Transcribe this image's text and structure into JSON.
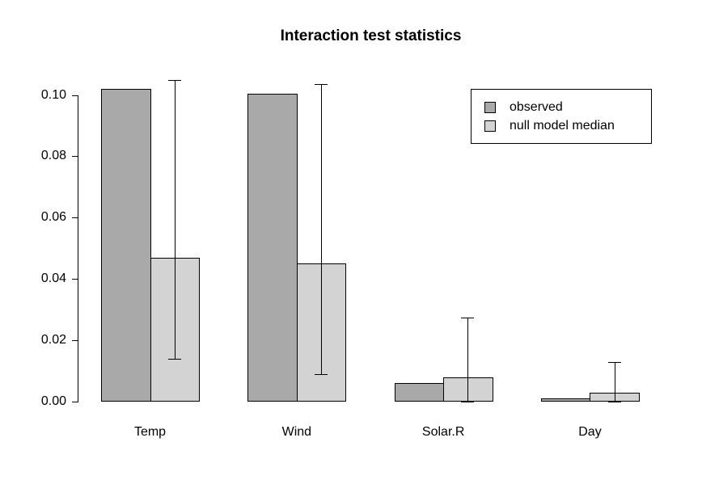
{
  "title": "Interaction test statistics",
  "colors": {
    "observed": "#a9a9a9",
    "null_median": "#d3d3d3",
    "border": "#000000",
    "axis": "#000000",
    "background": "#ffffff"
  },
  "legend": {
    "items": [
      {
        "label": "observed",
        "color_key": "observed"
      },
      {
        "label": "null model median",
        "color_key": "null_median"
      }
    ]
  },
  "chart_data": {
    "type": "bar",
    "title": "Interaction test statistics",
    "categories": [
      "Temp",
      "Wind",
      "Solar.R",
      "Day"
    ],
    "series": [
      {
        "name": "observed",
        "values": [
          0.102,
          0.1005,
          0.006,
          0.001
        ]
      },
      {
        "name": "null model median",
        "values": [
          0.047,
          0.045,
          0.008,
          0.003
        ]
      }
    ],
    "error_bars": {
      "on_series": "null model median",
      "low": [
        0.014,
        0.009,
        0.0,
        0.0
      ],
      "high": [
        0.105,
        0.1035,
        0.0275,
        0.013
      ]
    },
    "xlabel": "",
    "ylabel": "",
    "ylim": [
      0,
      0.105
    ],
    "yticks": [
      0.0,
      0.02,
      0.04,
      0.06,
      0.08,
      0.1
    ],
    "ytick_labels": [
      "0.00",
      "0.02",
      "0.04",
      "0.06",
      "0.08",
      "0.10"
    ],
    "grid": false,
    "legend_position": "top-right",
    "bar_orientation": "vertical"
  }
}
